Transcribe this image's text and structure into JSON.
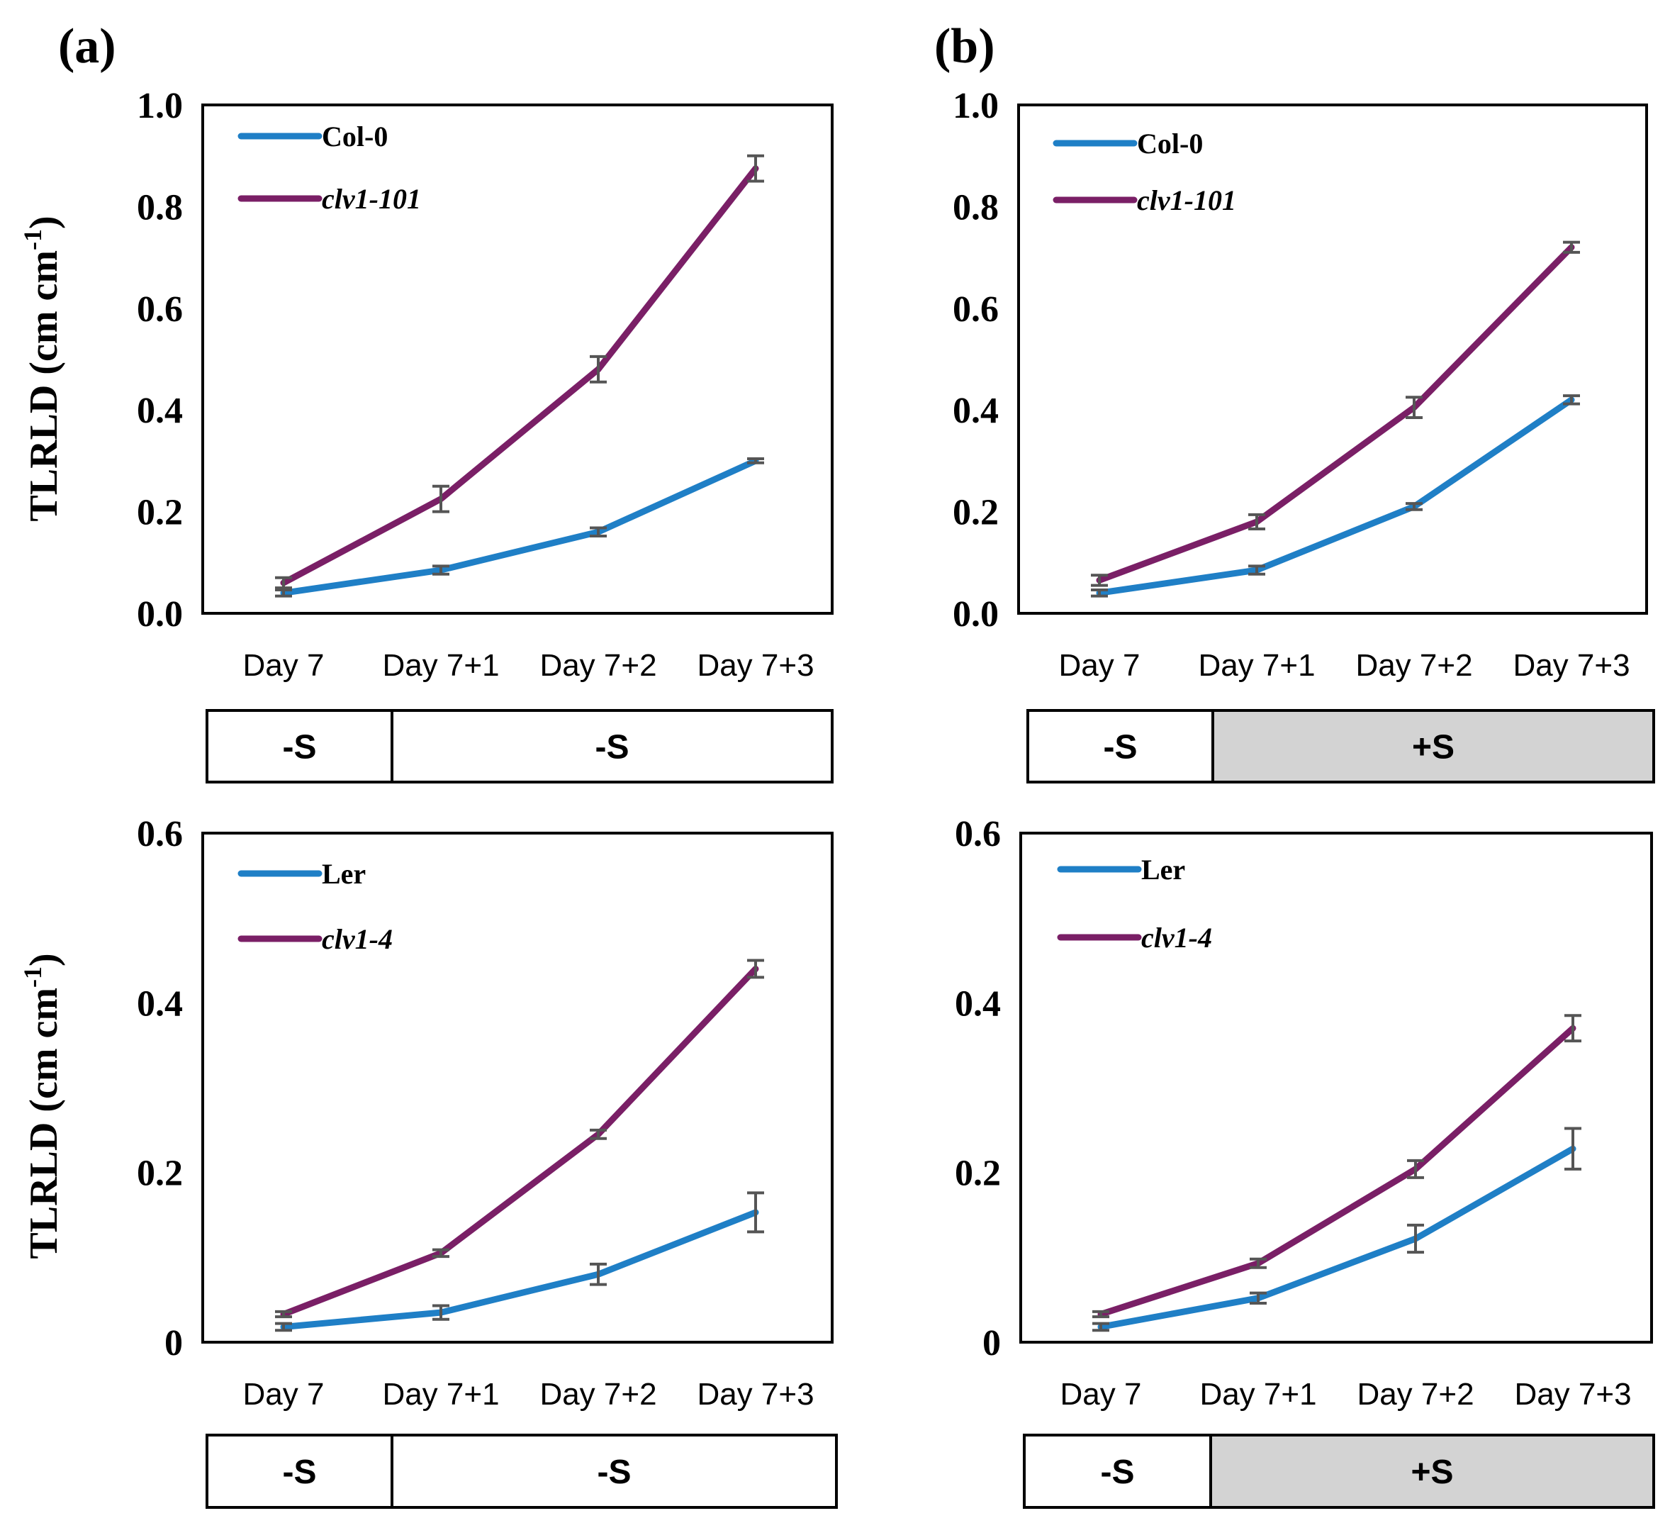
{
  "panel_labels": {
    "a": "(a)",
    "b": "(b)"
  },
  "y_axis_label": "TLRLD (cm cm",
  "y_axis_superscript": "-1",
  "y_axis_close": ")",
  "colors": {
    "series_blue": "#1f7fc6",
    "series_purple": "#7a1f66",
    "error_bar": "#555555",
    "shade": "#d3d3d3"
  },
  "chart_data": [
    {
      "id": "top-left",
      "type": "line",
      "categories": [
        "Day 7",
        "Day 7+1",
        "Day 7+2",
        "Day 7+3"
      ],
      "ylim": [
        0,
        1.0
      ],
      "yticks": [
        "0.0",
        "0.2",
        "0.4",
        "0.6",
        "0.8",
        "1.0"
      ],
      "ylabel": "TLRLD (cm cm-1)",
      "series": [
        {
          "name": "Col-0",
          "italic": false,
          "color": "#1f7fc6",
          "values": [
            0.04,
            0.085,
            0.16,
            0.3
          ],
          "errors": [
            0.006,
            0.008,
            0.008,
            0.004
          ]
        },
        {
          "name": "clv1-101",
          "italic": true,
          "color": "#7a1f66",
          "values": [
            0.06,
            0.225,
            0.48,
            0.875
          ],
          "errors": [
            0.01,
            0.025,
            0.025,
            0.025
          ]
        }
      ],
      "treatments": [
        {
          "label": "-S",
          "shaded": false
        },
        {
          "label": "-S",
          "shaded": false
        }
      ]
    },
    {
      "id": "top-right",
      "type": "line",
      "categories": [
        "Day 7",
        "Day 7+1",
        "Day 7+2",
        "Day 7+3"
      ],
      "ylim": [
        0,
        1.0
      ],
      "yticks": [
        "0.0",
        "0.2",
        "0.4",
        "0.6",
        "0.8",
        "1.0"
      ],
      "ylabel": "",
      "series": [
        {
          "name": "Col-0",
          "italic": false,
          "color": "#1f7fc6",
          "values": [
            0.04,
            0.085,
            0.21,
            0.42
          ],
          "errors": [
            0.006,
            0.008,
            0.006,
            0.008
          ]
        },
        {
          "name": "clv1-101",
          "italic": true,
          "color": "#7a1f66",
          "values": [
            0.065,
            0.18,
            0.405,
            0.72
          ],
          "errors": [
            0.01,
            0.014,
            0.02,
            0.01
          ]
        }
      ],
      "treatments": [
        {
          "label": "-S",
          "shaded": false
        },
        {
          "label": "+S",
          "shaded": true
        }
      ]
    },
    {
      "id": "bottom-left",
      "type": "line",
      "categories": [
        "Day 7",
        "Day 7+1",
        "Day 7+2",
        "Day 7+3"
      ],
      "ylim": [
        0,
        0.6
      ],
      "yticks": [
        "0",
        "0.2",
        "0.4",
        "0.6"
      ],
      "ylabel": "TLRLD (cm cm-1)",
      "series": [
        {
          "name": "Ler",
          "italic": false,
          "color": "#1f7fc6",
          "values": [
            0.018,
            0.035,
            0.08,
            0.153
          ],
          "errors": [
            0.004,
            0.008,
            0.012,
            0.023
          ]
        },
        {
          "name": "clv1-4",
          "italic": true,
          "color": "#7a1f66",
          "values": [
            0.033,
            0.105,
            0.245,
            0.44
          ],
          "errors": [
            0.003,
            0.004,
            0.005,
            0.01
          ]
        }
      ],
      "treatments": [
        {
          "label": "-S",
          "shaded": false
        },
        {
          "label": "-S",
          "shaded": false
        }
      ]
    },
    {
      "id": "bottom-right",
      "type": "line",
      "categories": [
        "Day 7",
        "Day 7+1",
        "Day 7+2",
        "Day 7+3"
      ],
      "ylim": [
        0,
        0.6
      ],
      "yticks": [
        "0",
        "0.2",
        "0.4",
        "0.6"
      ],
      "ylabel": "",
      "series": [
        {
          "name": "Ler",
          "italic": false,
          "color": "#1f7fc6",
          "values": [
            0.018,
            0.052,
            0.122,
            0.228
          ],
          "errors": [
            0.004,
            0.006,
            0.016,
            0.024
          ]
        },
        {
          "name": "clv1-4",
          "italic": true,
          "color": "#7a1f66",
          "values": [
            0.033,
            0.093,
            0.204,
            0.37
          ],
          "errors": [
            0.003,
            0.005,
            0.01,
            0.015
          ]
        }
      ],
      "treatments": [
        {
          "label": "-S",
          "shaded": false
        },
        {
          "label": "+S",
          "shaded": true
        }
      ]
    }
  ]
}
